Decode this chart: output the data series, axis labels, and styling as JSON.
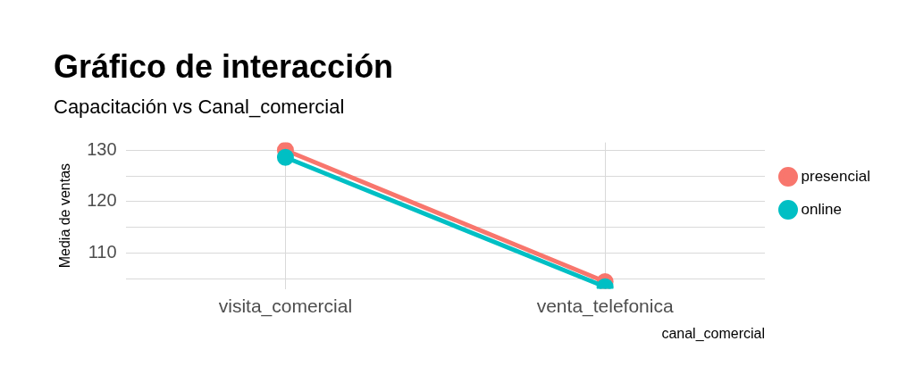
{
  "chart_data": {
    "type": "line",
    "title": "Gráfico de interacción",
    "subtitle": "Capacitación vs Canal_comercial",
    "xlabel": "canal_comercial",
    "ylabel": "Media de ventas",
    "categories": [
      "visita_comercial",
      "venta_telefonica"
    ],
    "series": [
      {
        "name": "presencial",
        "color": "#f8766d",
        "values": [
          130,
          104.4
        ]
      },
      {
        "name": "online",
        "color": "#00bfc4",
        "values": [
          128.6,
          103.4
        ]
      }
    ],
    "ylim": [
      103,
      131.5
    ],
    "yticks": [
      {
        "value": 105,
        "label": null
      },
      110,
      {
        "value": 115,
        "label": null
      },
      120,
      {
        "value": 125,
        "label": null
      },
      130
    ],
    "grid": true,
    "legend": "right",
    "marker": "circle",
    "line_style": "solid"
  }
}
